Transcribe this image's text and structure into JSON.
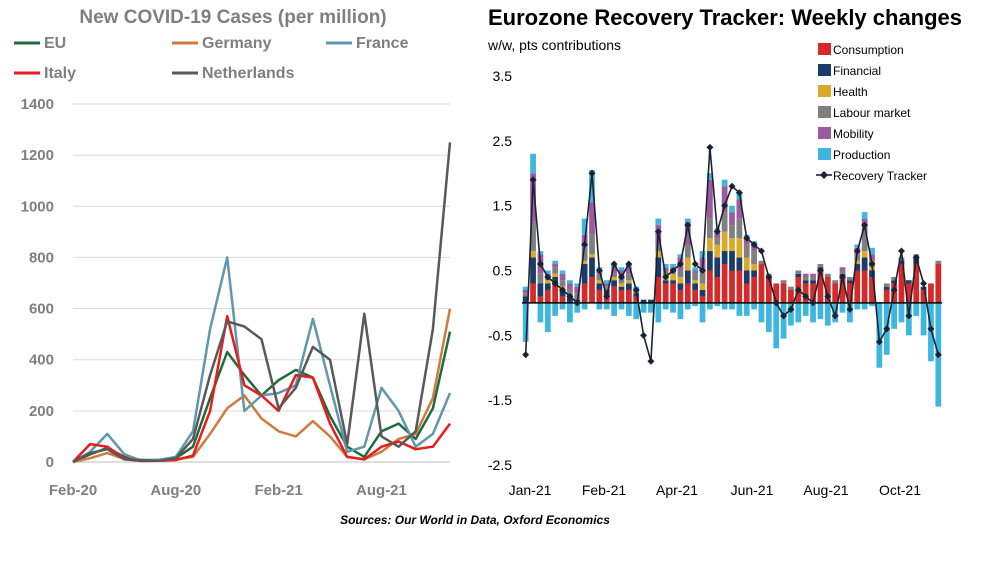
{
  "source_note": "Sources: Our World in Data, Oxford Economics",
  "chart_data": [
    {
      "type": "line",
      "title": "New COVID-19 Cases (per million)",
      "x_ticks": [
        "Feb-20",
        "Aug-20",
        "Feb-21",
        "Aug-21"
      ],
      "y_ticks": [
        0,
        200,
        400,
        600,
        800,
        1000,
        1200,
        1400
      ],
      "ylim": [
        0,
        1400
      ],
      "grid": "horizontal",
      "legend_position": "top",
      "x": [
        "Feb-20",
        "Mar-20",
        "Apr-20",
        "May-20",
        "Jun-20",
        "Jul-20",
        "Aug-20",
        "Sep-20",
        "Oct-20",
        "Nov-20",
        "Dec-20",
        "Jan-21",
        "Feb-21",
        "Mar-21",
        "Apr-21",
        "May-21",
        "Jun-21",
        "Jul-21",
        "Aug-21",
        "Sep-21",
        "Oct-21",
        "Nov-21",
        "Dec-21"
      ],
      "series": [
        {
          "name": "EU",
          "color": "#1e6b3c",
          "values": [
            0,
            30,
            55,
            20,
            8,
            8,
            15,
            60,
            250,
            430,
            340,
            260,
            320,
            360,
            330,
            180,
            60,
            20,
            120,
            150,
            90,
            210,
            510
          ]
        },
        {
          "name": "Germany",
          "color": "#d07a3e",
          "values": [
            0,
            15,
            35,
            12,
            5,
            5,
            10,
            20,
            110,
            210,
            260,
            170,
            120,
            100,
            160,
            100,
            20,
            10,
            40,
            90,
            110,
            250,
            600
          ]
        },
        {
          "name": "France",
          "color": "#5f97ad",
          "values": [
            0,
            40,
            110,
            30,
            5,
            8,
            20,
            120,
            520,
            800,
            200,
            260,
            270,
            300,
            560,
            300,
            40,
            60,
            290,
            200,
            60,
            110,
            270
          ]
        },
        {
          "name": "Italy",
          "color": "#e81c1c",
          "values": [
            0,
            70,
            60,
            15,
            4,
            5,
            8,
            25,
            200,
            570,
            300,
            260,
            200,
            340,
            330,
            150,
            20,
            10,
            60,
            80,
            50,
            60,
            150
          ]
        },
        {
          "name": "Netherlands",
          "color": "#595959",
          "values": [
            0,
            35,
            50,
            10,
            5,
            5,
            15,
            90,
            340,
            550,
            530,
            480,
            210,
            290,
            450,
            400,
            70,
            580,
            100,
            60,
            120,
            520,
            1250
          ]
        }
      ]
    },
    {
      "type": "bar",
      "title": "Eurozone Recovery Tracker: Weekly changes",
      "subtitle": "w/w, pts contributions",
      "x_ticks": [
        "Jan-21",
        "Feb-21",
        "Apr-21",
        "Jun-21",
        "Aug-21",
        "Oct-21"
      ],
      "y_ticks": [
        3.5,
        2.5,
        1.5,
        0.5,
        -0.5,
        -1.5,
        -2.5
      ],
      "ylim": [
        -2.5,
        3.5
      ],
      "legend_position": "top-right",
      "components": [
        {
          "name": "Consumption",
          "color": "#d42a2a"
        },
        {
          "name": "Financial",
          "color": "#1b3c6b"
        },
        {
          "name": "Health",
          "color": "#d9aa2b"
        },
        {
          "name": "Labour market",
          "color": "#7f7f7f"
        },
        {
          "name": "Mobility",
          "color": "#9c5b9e"
        },
        {
          "name": "Production",
          "color": "#3fb6e0"
        }
      ],
      "tracker_series": {
        "name": "Recovery Tracker",
        "color": "#1a2333",
        "values": [
          -0.8,
          1.9,
          0.6,
          0.4,
          0.3,
          0.2,
          0.1,
          0.0,
          0.9,
          2.0,
          0.5,
          0.1,
          0.6,
          0.4,
          0.6,
          0.2,
          -0.5,
          -0.9,
          1.1,
          0.4,
          0.5,
          0.6,
          1.2,
          0.6,
          0.5,
          2.4,
          1.1,
          1.5,
          1.8,
          1.7,
          1.0,
          0.9,
          0.8,
          0.4,
          0.0,
          -0.2,
          -0.1,
          0.2,
          0.1,
          0.0,
          0.5,
          0.1,
          -0.2,
          0.4,
          -0.1,
          0.8,
          1.2,
          0.6,
          -0.6,
          -0.4,
          0.2,
          0.8,
          -0.2,
          0.7,
          0.3,
          -0.4,
          -0.8
        ]
      },
      "stacks": [
        [
          0.0,
          0.1,
          0.0,
          0.05,
          0.05,
          0.05,
          -0.6
        ],
        [
          0.3,
          0.4,
          0.1,
          0.45,
          0.75,
          0.3,
          0.0
        ],
        [
          0.1,
          0.2,
          0.0,
          0.15,
          0.3,
          0.05,
          -0.3
        ],
        [
          0.2,
          0.1,
          0.05,
          0.05,
          0.05,
          0.05,
          -0.45
        ],
        [
          0.3,
          0.1,
          0.05,
          0.1,
          0.05,
          0.05,
          -0.2
        ],
        [
          0.1,
          0.1,
          0.05,
          0.1,
          0.1,
          0.05,
          -0.1
        ],
        [
          -0.1,
          0.1,
          0.0,
          0.1,
          0.1,
          0.05,
          -0.3
        ],
        [
          -0.2,
          0.05,
          0.0,
          0.1,
          0.1,
          0.05,
          -0.15
        ],
        [
          0.3,
          0.3,
          0.05,
          0.2,
          0.2,
          0.25,
          -0.1
        ],
        [
          0.4,
          0.3,
          0.05,
          0.3,
          0.5,
          0.5,
          0.0
        ],
        [
          0.2,
          0.1,
          0.05,
          0.1,
          0.05,
          0.05,
          -0.1
        ],
        [
          0.1,
          0.1,
          0.0,
          0.05,
          0.05,
          0.05,
          -0.1
        ],
        [
          0.25,
          0.1,
          0.05,
          0.05,
          0.1,
          0.05,
          -0.2
        ],
        [
          0.2,
          0.05,
          0.05,
          0.1,
          0.1,
          0.05,
          -0.1
        ],
        [
          0.2,
          0.1,
          0.05,
          0.1,
          0.1,
          0.05,
          -0.2
        ],
        [
          0.1,
          0.05,
          0.0,
          0.05,
          0.0,
          0.05,
          -0.25
        ],
        [
          -0.25,
          0.05,
          0.0,
          0.0,
          -0.1,
          0.0,
          -0.15
        ],
        [
          -0.4,
          0.05,
          0.0,
          -0.1,
          -0.3,
          0.0,
          -0.15
        ],
        [
          0.4,
          0.3,
          0.1,
          0.1,
          0.3,
          0.1,
          -0.3
        ],
        [
          0.3,
          0.05,
          0.05,
          0.1,
          0.05,
          0.05,
          -0.1
        ],
        [
          0.3,
          0.05,
          0.1,
          0.05,
          0.05,
          0.05,
          -0.15
        ],
        [
          0.2,
          0.1,
          0.1,
          0.1,
          0.2,
          0.05,
          -0.25
        ],
        [
          0.3,
          0.2,
          0.2,
          0.2,
          0.35,
          0.05,
          -0.1
        ],
        [
          0.2,
          0.1,
          0.05,
          0.1,
          0.05,
          0.05,
          -0.05
        ],
        [
          0.1,
          0.1,
          0.1,
          0.2,
          0.2,
          0.1,
          -0.3
        ],
        [
          0.5,
          0.3,
          0.2,
          0.3,
          0.6,
          0.1,
          -0.1
        ],
        [
          0.4,
          0.3,
          0.2,
          0.1,
          0.1,
          0.05,
          -0.05
        ],
        [
          0.6,
          0.2,
          0.3,
          0.3,
          0.4,
          0.1,
          -0.1
        ],
        [
          0.5,
          0.3,
          0.2,
          0.2,
          0.2,
          0.1,
          -0.1
        ],
        [
          0.5,
          0.2,
          0.3,
          0.3,
          0.3,
          0.1,
          -0.2
        ],
        [
          0.3,
          0.2,
          0.2,
          0.2,
          0.1,
          0.05,
          -0.2
        ],
        [
          0.4,
          0.1,
          0.1,
          0.2,
          0.1,
          0.05,
          -0.1
        ],
        [
          0.6,
          0.0,
          0.0,
          0.05,
          0.0,
          0.0,
          -0.3
        ],
        [
          0.4,
          0.0,
          0.0,
          0.05,
          0.0,
          0.0,
          -0.45
        ],
        [
          0.3,
          0.0,
          0.0,
          0.0,
          0.0,
          0.0,
          -0.7
        ],
        [
          0.3,
          0.0,
          0.0,
          0.05,
          0.0,
          0.0,
          -0.55
        ],
        [
          0.2,
          0.0,
          0.0,
          0.05,
          0.0,
          0.0,
          -0.35
        ],
        [
          0.4,
          0.05,
          0.0,
          0.05,
          0.0,
          0.0,
          -0.3
        ],
        [
          0.3,
          0.05,
          0.0,
          0.05,
          0.05,
          0.0,
          -0.2
        ],
        [
          0.3,
          0.05,
          0.0,
          0.05,
          0.05,
          0.0,
          -0.3
        ],
        [
          0.5,
          0.05,
          0.0,
          0.05,
          0.0,
          0.0,
          -0.25
        ],
        [
          0.4,
          0.0,
          0.0,
          0.05,
          0.0,
          0.0,
          -0.35
        ],
        [
          0.3,
          0.0,
          0.0,
          0.05,
          0.0,
          0.0,
          -0.3
        ],
        [
          0.4,
          0.05,
          0.0,
          0.05,
          0.05,
          0.0,
          -0.15
        ],
        [
          0.3,
          0.05,
          0.0,
          0.05,
          0.0,
          0.0,
          -0.3
        ],
        [
          0.5,
          0.1,
          0.05,
          0.1,
          0.1,
          0.05,
          -0.1
        ],
        [
          0.5,
          0.2,
          0.1,
          0.3,
          0.2,
          0.1,
          -0.1
        ],
        [
          0.4,
          0.1,
          0.05,
          0.1,
          0.1,
          0.1,
          -0.05
        ],
        [
          0.0,
          0.0,
          0.0,
          0.0,
          0.0,
          0.0,
          -1.0
        ],
        [
          0.2,
          0.05,
          0.0,
          0.05,
          0.0,
          0.0,
          -0.8
        ],
        [
          0.3,
          0.05,
          0.0,
          0.05,
          0.0,
          0.0,
          -0.4
        ],
        [
          0.6,
          0.05,
          0.0,
          0.05,
          0.0,
          0.0,
          -0.3
        ],
        [
          0.3,
          0.05,
          0.0,
          0.0,
          0.0,
          0.0,
          -0.5
        ],
        [
          0.6,
          0.1,
          0.0,
          0.05,
          0.0,
          0.0,
          -0.2
        ],
        [
          0.2,
          0.05,
          0.0,
          0.0,
          0.0,
          0.0,
          -0.5
        ],
        [
          0.3,
          0.0,
          0.0,
          0.0,
          0.0,
          0.0,
          -0.9
        ],
        [
          0.6,
          0.0,
          0.0,
          0.05,
          0.0,
          0.0,
          -1.6
        ]
      ]
    }
  ]
}
